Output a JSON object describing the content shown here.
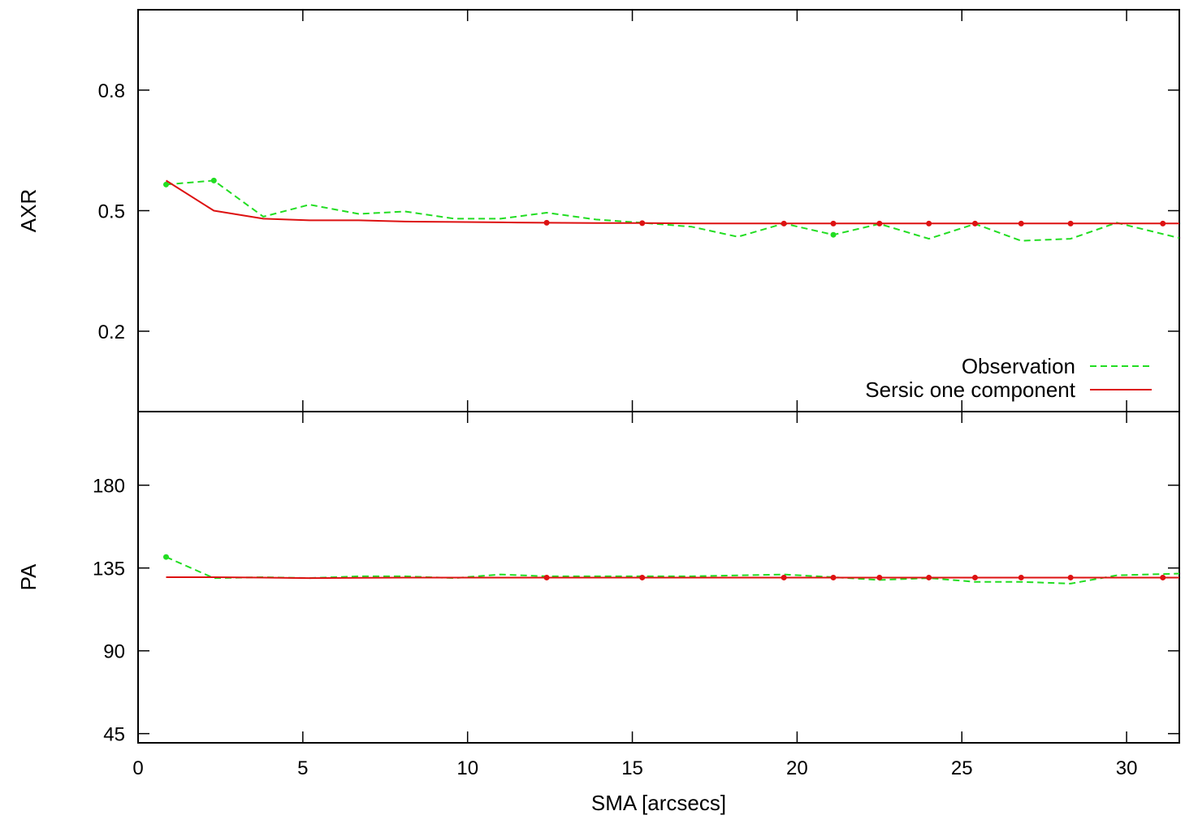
{
  "chart_data": {
    "type": "line",
    "x_axis": {
      "label": "SMA [arcsecs]",
      "range": [
        0,
        31.6
      ],
      "ticks": [
        0,
        5,
        10,
        15,
        20,
        25,
        30
      ],
      "tick_labels": [
        "0",
        "5",
        "10",
        "15",
        "20",
        "25",
        "30"
      ]
    },
    "legend": {
      "placement": "bottom-right of top panel",
      "entries": [
        {
          "label": "Observation",
          "color": "#22dd22",
          "style": "dashed"
        },
        {
          "label": "Sersic one component",
          "color": "#dd1111",
          "style": "solid"
        }
      ]
    },
    "panels": [
      {
        "id": "axr",
        "ylabel": "AXR",
        "ylim": [
          0.0,
          1.0
        ],
        "yticks": [
          0.2,
          0.5,
          0.8
        ],
        "ytick_labels": [
          "0.2",
          "0.5",
          "0.8"
        ],
        "series": [
          {
            "name": "Observation",
            "color": "#22dd22",
            "style": "dashed",
            "x": [
              0.85,
              2.3,
              3.8,
              5.2,
              6.7,
              8.1,
              9.6,
              11.0,
              12.4,
              13.9,
              15.3,
              16.8,
              18.2,
              19.6,
              21.1,
              22.5,
              24.0,
              25.4,
              26.8,
              28.3,
              29.7,
              31.6
            ],
            "y": [
              0.565,
              0.575,
              0.485,
              0.515,
              0.492,
              0.498,
              0.48,
              0.48,
              0.495,
              0.478,
              0.47,
              0.46,
              0.435,
              0.468,
              0.44,
              0.467,
              0.43,
              0.467,
              0.425,
              0.43,
              0.47,
              0.432
            ],
            "markers_x": [
              0.85,
              2.3,
              21.1
            ],
            "markers_y": [
              0.565,
              0.575,
              0.44
            ]
          },
          {
            "name": "Sersic one component",
            "color": "#dd1111",
            "style": "solid",
            "x": [
              0.85,
              2.3,
              3.8,
              5.2,
              6.7,
              8.1,
              9.6,
              11.0,
              12.4,
              13.9,
              15.3,
              16.8,
              18.2,
              19.6,
              21.1,
              22.5,
              24.0,
              25.4,
              26.8,
              28.3,
              29.7,
              31.6
            ],
            "y": [
              0.575,
              0.5,
              0.48,
              0.476,
              0.476,
              0.473,
              0.472,
              0.471,
              0.47,
              0.469,
              0.469,
              0.468,
              0.468,
              0.468,
              0.468,
              0.468,
              0.468,
              0.468,
              0.468,
              0.468,
              0.468,
              0.468
            ],
            "markers_x": [
              12.4,
              15.3,
              19.6,
              21.1,
              22.5,
              24.0,
              25.4,
              26.8,
              28.3,
              31.1
            ],
            "markers_y": [
              0.47,
              0.469,
              0.468,
              0.468,
              0.468,
              0.468,
              0.468,
              0.468,
              0.468,
              0.468
            ]
          }
        ]
      },
      {
        "id": "pa",
        "ylabel": "PA",
        "ylim": [
          40,
          220
        ],
        "yticks": [
          45,
          90,
          135,
          180
        ],
        "ytick_labels": [
          "45",
          "90",
          "135",
          "180"
        ],
        "series": [
          {
            "name": "Observation",
            "color": "#22dd22",
            "style": "dashed",
            "x": [
              0.85,
              2.3,
              3.8,
              5.2,
              6.7,
              8.1,
              9.6,
              11.0,
              12.4,
              13.9,
              15.3,
              16.8,
              18.2,
              19.6,
              21.1,
              22.5,
              24.0,
              25.4,
              26.8,
              28.3,
              29.7,
              31.6
            ],
            "y": [
              141,
              129.5,
              130,
              129.5,
              130.5,
              130.5,
              129.5,
              131.5,
              130.5,
              130.5,
              130.5,
              130.5,
              131,
              131.5,
              130,
              128.5,
              129.5,
              127.5,
              127.5,
              126.5,
              131,
              132
            ],
            "markers_x": [
              0.85
            ],
            "markers_y": [
              141
            ]
          },
          {
            "name": "Sersic one component",
            "color": "#dd1111",
            "style": "solid",
            "x": [
              0.85,
              2.3,
              3.8,
              5.2,
              6.7,
              8.1,
              9.6,
              11.0,
              12.4,
              13.9,
              15.3,
              16.8,
              18.2,
              19.6,
              21.1,
              22.5,
              24.0,
              25.4,
              26.8,
              28.3,
              29.7,
              31.6
            ],
            "y": [
              130,
              130,
              129.8,
              129.5,
              129.7,
              129.8,
              129.8,
              129.8,
              129.8,
              129.8,
              129.8,
              129.8,
              129.8,
              129.8,
              129.8,
              129.8,
              129.8,
              129.8,
              129.8,
              129.8,
              129.8,
              129.8
            ],
            "markers_x": [
              12.4,
              15.3,
              19.6,
              21.1,
              22.5,
              24.0,
              25.4,
              26.8,
              28.3,
              31.1
            ],
            "markers_y": [
              129.8,
              129.8,
              129.8,
              129.8,
              129.8,
              129.8,
              129.8,
              129.8,
              129.8,
              129.8
            ]
          }
        ]
      }
    ]
  }
}
